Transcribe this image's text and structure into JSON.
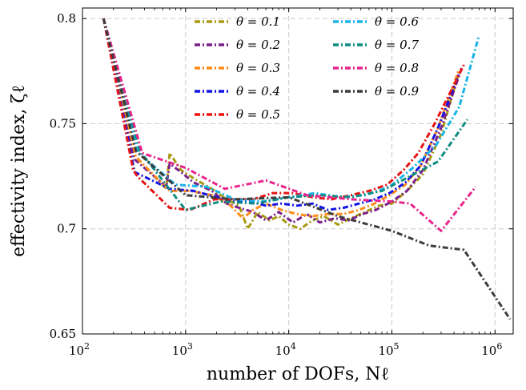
{
  "chart_data": {
    "type": "line",
    "title": "",
    "xlabel": "number of DOFs, Nℓ",
    "ylabel": "effectivity index, ζℓ",
    "x_scale": "log",
    "xlim": [
      100,
      1500000
    ],
    "ylim": [
      0.65,
      0.805
    ],
    "grid": true,
    "legend_position": "top-center",
    "x_tick_labels": [
      {
        "value": 100,
        "base": "10",
        "exp": "2"
      },
      {
        "value": 1000,
        "base": "10",
        "exp": "3"
      },
      {
        "value": 10000,
        "base": "10",
        "exp": "4"
      },
      {
        "value": 100000,
        "base": "10",
        "exp": "5"
      },
      {
        "value": 1000000,
        "base": "10",
        "exp": "6"
      }
    ],
    "y_ticks": [
      0.65,
      0.7,
      0.75,
      0.8
    ],
    "y_tick_labels": [
      "0.65",
      "0.7",
      "0.75",
      "0.8"
    ],
    "series": [
      {
        "name": "θ = 0.1",
        "color": "#a89a12",
        "x": [
          160,
          320,
          650,
          700,
          900,
          1200,
          1800,
          2500,
          3300,
          4000,
          5000,
          6500,
          8000,
          10000,
          13000,
          17000,
          22000,
          30000,
          40000,
          55000,
          75000,
          100000,
          140000,
          200000,
          300000,
          450000
        ],
        "y": [
          0.8,
          0.735,
          0.719,
          0.736,
          0.728,
          0.724,
          0.719,
          0.714,
          0.711,
          0.7,
          0.708,
          0.704,
          0.706,
          0.702,
          0.7,
          0.704,
          0.706,
          0.702,
          0.705,
          0.708,
          0.711,
          0.712,
          0.718,
          0.726,
          0.745,
          0.775
        ]
      },
      {
        "name": "θ = 0.2",
        "color": "#7b1f8a",
        "x": [
          160,
          320,
          650,
          700,
          900,
          1200,
          1800,
          2500,
          3300,
          4500,
          6000,
          8000,
          11000,
          15000,
          20000,
          28000,
          38000,
          52000,
          70000,
          100000,
          140000,
          200000,
          300000,
          480000
        ],
        "y": [
          0.8,
          0.733,
          0.72,
          0.731,
          0.727,
          0.722,
          0.718,
          0.712,
          0.71,
          0.708,
          0.704,
          0.708,
          0.703,
          0.707,
          0.703,
          0.705,
          0.704,
          0.707,
          0.709,
          0.713,
          0.718,
          0.728,
          0.748,
          0.777
        ]
      },
      {
        "name": "θ = 0.3",
        "color": "#ff8c1a",
        "x": [
          160,
          330,
          700,
          1100,
          1800,
          2600,
          3600,
          4500,
          6000,
          8500,
          12000,
          17000,
          24000,
          34000,
          48000,
          68000,
          95000,
          135000,
          190000,
          280000,
          450000
        ],
        "y": [
          0.8,
          0.734,
          0.718,
          0.718,
          0.716,
          0.712,
          0.705,
          0.709,
          0.712,
          0.709,
          0.707,
          0.706,
          0.707,
          0.707,
          0.709,
          0.712,
          0.716,
          0.721,
          0.73,
          0.748,
          0.776
        ]
      },
      {
        "name": "θ = 0.4",
        "color": "#1414e6",
        "x": [
          160,
          320,
          700,
          1200,
          2000,
          3000,
          4200,
          6000,
          8500,
          12000,
          17000,
          24000,
          34000,
          48000,
          68000,
          95000,
          135000,
          190000,
          280000,
          450000
        ],
        "y": [
          0.8,
          0.727,
          0.719,
          0.718,
          0.715,
          0.713,
          0.713,
          0.711,
          0.712,
          0.711,
          0.712,
          0.709,
          0.71,
          0.712,
          0.714,
          0.717,
          0.722,
          0.73,
          0.748,
          0.774
        ]
      },
      {
        "name": "θ = 0.5",
        "color": "#e61414",
        "x": [
          160,
          310,
          340,
          700,
          1100,
          1900,
          3000,
          4500,
          7000,
          11000,
          17000,
          26000,
          40000,
          60000,
          90000,
          130000,
          180000,
          260000,
          500000
        ],
        "y": [
          0.8,
          0.728,
          0.725,
          0.71,
          0.709,
          0.714,
          0.714,
          0.714,
          0.717,
          0.717,
          0.715,
          0.714,
          0.716,
          0.718,
          0.721,
          0.728,
          0.736,
          0.75,
          0.778
        ]
      },
      {
        "name": "θ = 0.6",
        "color": "#18b4e8",
        "x": [
          160,
          350,
          800,
          1600,
          3000,
          5500,
          10000,
          18000,
          32000,
          55000,
          95000,
          160000,
          270000,
          450000,
          700000
        ],
        "y": [
          0.8,
          0.736,
          0.721,
          0.72,
          0.714,
          0.713,
          0.715,
          0.717,
          0.715,
          0.716,
          0.72,
          0.729,
          0.74,
          0.758,
          0.792
        ]
      },
      {
        "name": "θ = 0.7",
        "color": "#0f8c82",
        "x": [
          160,
          360,
          1000,
          2200,
          4800,
          10000,
          20000,
          40000,
          80000,
          150000,
          280000,
          540000
        ],
        "y": [
          0.8,
          0.737,
          0.709,
          0.713,
          0.712,
          0.715,
          0.716,
          0.715,
          0.718,
          0.725,
          0.732,
          0.752
        ]
      },
      {
        "name": "θ = 0.8",
        "color": "#e8248c",
        "x": [
          160,
          380,
          1000,
          2400,
          6000,
          15000,
          40000,
          100000,
          150000,
          300000,
          650000
        ],
        "y": [
          0.8,
          0.736,
          0.729,
          0.719,
          0.723,
          0.716,
          0.714,
          0.713,
          0.712,
          0.699,
          0.72
        ]
      },
      {
        "name": "θ = 0.9",
        "color": "#3c3c3c",
        "x": [
          160,
          330,
          1000,
          3000,
          10000,
          30000,
          100000,
          230000,
          500000,
          1400000
        ],
        "y": [
          0.8,
          0.737,
          0.716,
          0.714,
          0.715,
          0.706,
          0.699,
          0.692,
          0.69,
          0.657
        ]
      }
    ]
  }
}
